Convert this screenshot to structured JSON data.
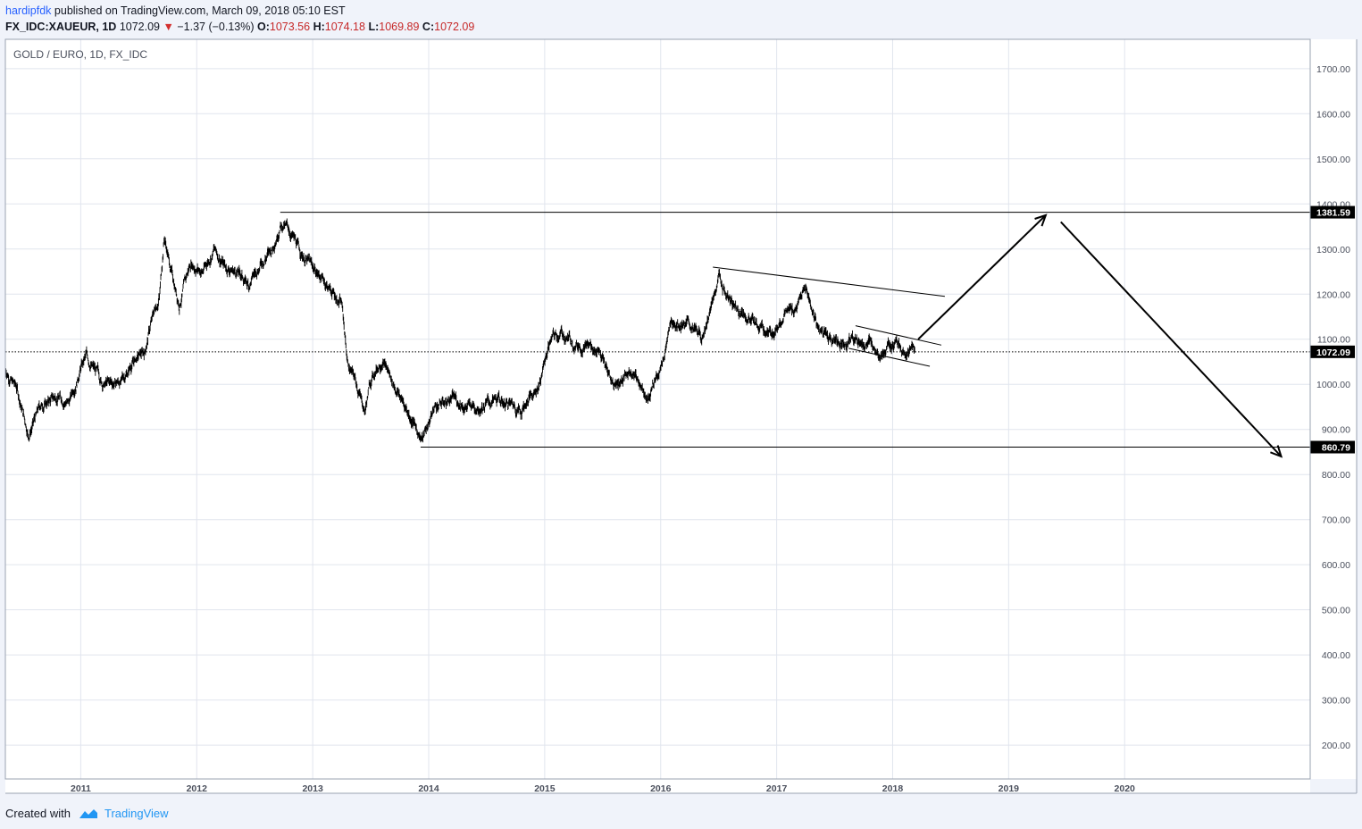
{
  "header": {
    "author": "hardipfdk",
    "published_text": "published on TradingView.com, March 09, 2018 05:10 EST"
  },
  "quote": {
    "symbol": "FX_IDC:XAUEUR, 1D",
    "last": "1072.09",
    "change": "−1.37 (−0.13%)",
    "o_label": "O:",
    "o_value": "1073.56",
    "h_label": "H:",
    "h_value": "1074.18",
    "l_label": "L:",
    "l_value": "1069.89",
    "c_label": "C:",
    "c_value": "1072.09"
  },
  "footer": {
    "created_with": "Created with",
    "brand": "TradingView"
  },
  "colors": {
    "background": "#f0f3fa",
    "plot_background": "#ffffff",
    "grid": "#e1e5ee",
    "candle": "#000000",
    "drawing": "#000000",
    "down_indicator": "#d32f2f"
  },
  "chart_data": {
    "type": "line",
    "title": "GOLD / EURO, 1D, FX_IDC",
    "x_label": "",
    "y_label": "",
    "x_ticks": [
      "2011",
      "2012",
      "2013",
      "2014",
      "2015",
      "2016",
      "2017",
      "2018",
      "2019",
      "2020"
    ],
    "x_range": [
      2010.35,
      2021.6
    ],
    "y_ticks": [
      "200.00",
      "300.00",
      "400.00",
      "500.00",
      "600.00",
      "700.00",
      "800.00",
      "900.00",
      "1000.00",
      "1100.00",
      "1200.00",
      "1300.00",
      "1400.00",
      "1500.00",
      "1600.00",
      "1700.00"
    ],
    "y_range": [
      125,
      1765
    ],
    "grid": true,
    "series": [
      {
        "values_note": "approximate daily close path",
        "x": [
          2010.35,
          2010.45,
          2010.55,
          2010.65,
          2010.8,
          2010.9,
          2011.0,
          2011.05,
          2011.2,
          2011.35,
          2011.45,
          2011.55,
          2011.6,
          2011.68,
          2011.72,
          2011.78,
          2011.85,
          2011.95,
          2012.05,
          2012.15,
          2012.25,
          2012.35,
          2012.45,
          2012.55,
          2012.65,
          2012.72,
          2012.8,
          2012.9,
          2013.0,
          2013.1,
          2013.18,
          2013.25,
          2013.3,
          2013.38,
          2013.45,
          2013.5,
          2013.6,
          2013.7,
          2013.8,
          2013.9,
          2013.95,
          2014.05,
          2014.2,
          2014.35,
          2014.5,
          2014.65,
          2014.8,
          2014.95,
          2015.05,
          2015.15,
          2015.3,
          2015.45,
          2015.6,
          2015.75,
          2015.9,
          2016.0,
          2016.1,
          2016.2,
          2016.35,
          2016.45,
          2016.5,
          2016.6,
          2016.7,
          2016.85,
          2016.95,
          2017.05,
          2017.15,
          2017.25,
          2017.35,
          2017.45,
          2017.55,
          2017.65,
          2017.75,
          2017.85,
          2017.95,
          2018.05,
          2018.19
        ],
        "y": [
          1035,
          990,
          890,
          950,
          975,
          960,
          1040,
          1060,
          1000,
          1005,
          1050,
          1070,
          1130,
          1200,
          1330,
          1250,
          1180,
          1270,
          1250,
          1300,
          1260,
          1250,
          1220,
          1270,
          1300,
          1360,
          1340,
          1290,
          1260,
          1230,
          1200,
          1180,
          1050,
          1000,
          940,
          1010,
          1060,
          1000,
          950,
          900,
          880,
          950,
          970,
          950,
          960,
          960,
          945,
          1000,
          1100,
          1110,
          1090,
          1080,
          1000,
          1030,
          975,
          1040,
          1140,
          1140,
          1105,
          1180,
          1245,
          1180,
          1165,
          1125,
          1110,
          1155,
          1165,
          1210,
          1130,
          1100,
          1090,
          1105,
          1090,
          1080,
          1075,
          1085,
          1072.09
        ]
      }
    ],
    "labels": {
      "resistance": "1381.59",
      "support": "860.79",
      "current": "1072.09"
    },
    "drawings": [
      {
        "kind": "horizontal-line",
        "label": "resistance",
        "y": 1381.59,
        "x_start": 2012.72,
        "x_end": 2021.6
      },
      {
        "kind": "horizontal-line",
        "label": "support",
        "y": 860.79,
        "x_start": 2013.93,
        "x_end": 2021.6
      },
      {
        "kind": "trendline",
        "label": "upper-trendline",
        "x": [
          2016.45,
          2018.45
        ],
        "y": [
          1260,
          1195
        ]
      },
      {
        "kind": "trendline",
        "label": "channel-upper",
        "x": [
          2017.68,
          2018.42
        ],
        "y": [
          1130,
          1087
        ]
      },
      {
        "kind": "trendline",
        "label": "channel-lower",
        "x": [
          2017.62,
          2018.32
        ],
        "y": [
          1080,
          1040
        ]
      },
      {
        "kind": "arrow",
        "label": "arrow-up",
        "x": [
          2018.22,
          2019.32
        ],
        "y": [
          1100,
          1375
        ]
      },
      {
        "kind": "arrow",
        "label": "arrow-down",
        "x": [
          2019.45,
          2021.35
        ],
        "y": [
          1360,
          840
        ]
      }
    ]
  }
}
